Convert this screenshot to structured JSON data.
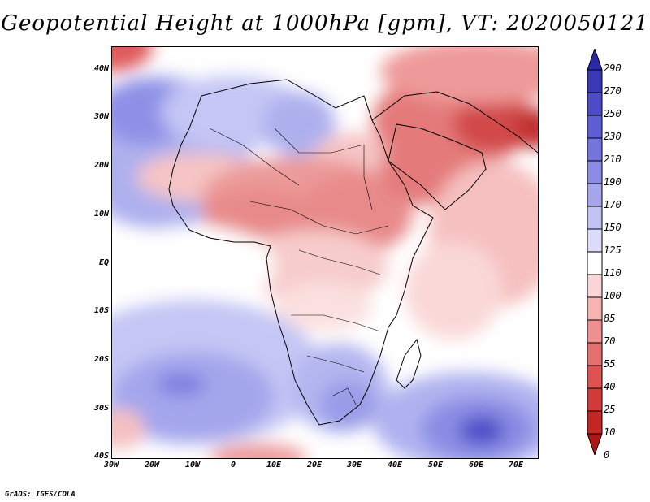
{
  "title": "Geopotential Height at 1000hPa [gpm], VT: 2020050121",
  "credit": "GrADS: IGES/COLA",
  "map": {
    "region": "Africa and Middle East",
    "lat_labels": [
      "40N",
      "30N",
      "20N",
      "10N",
      "EQ",
      "10S",
      "20S",
      "30S",
      "40S"
    ],
    "lon_labels": [
      "30W",
      "20W",
      "10W",
      "0",
      "10E",
      "20E",
      "30E",
      "40E",
      "50E",
      "60E",
      "70E"
    ],
    "lat_range": [
      -40,
      44
    ],
    "lon_range": [
      -30,
      75
    ]
  },
  "colorbar": {
    "levels": [
      "290",
      "270",
      "250",
      "230",
      "210",
      "190",
      "170",
      "150",
      "125",
      "110",
      "100",
      "85",
      "70",
      "55",
      "40",
      "25",
      "10",
      "0"
    ],
    "colors": [
      "#2a2aa8",
      "#3a3ab8",
      "#4c4cc8",
      "#5e5ed6",
      "#7474df",
      "#8c8ce6",
      "#a6a6ee",
      "#c2c2f5",
      "#dcdcfa",
      "#ffffff",
      "#fbd6d6",
      "#f5b3b3",
      "#ee9090",
      "#e67070",
      "#de5252",
      "#d23a3a",
      "#c42626",
      "#b01515"
    ]
  }
}
